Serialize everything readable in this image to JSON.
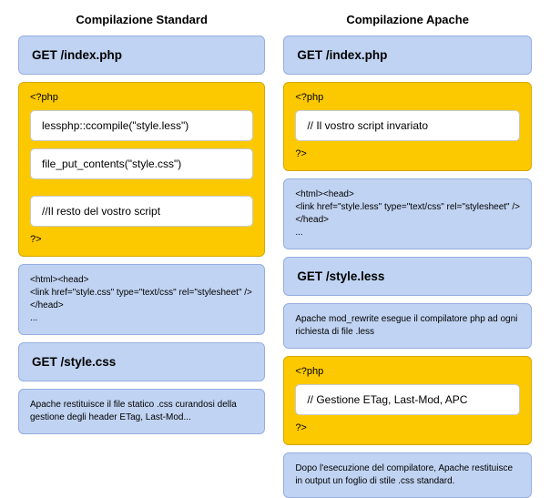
{
  "colors": {
    "blue_bg": "#c0d3f2",
    "blue_border": "#95aee0",
    "yellow_bg": "#fcc900",
    "yellow_border": "#d4a800",
    "white": "#ffffff",
    "inner_border": "#c9c9c9"
  },
  "left": {
    "title": "Compilazione Standard",
    "get1": "GET /index.php",
    "php_open": "<?php",
    "php_close": "?>",
    "php_lines": {
      "l1": "lessphp::ccompile(\"style.less\")",
      "l2": "file_put_contents(\"style.css\")",
      "l3": "//Il resto del vostro script"
    },
    "html_snippet": {
      "l1": "<html><head>",
      "l2": "<link href=\"style.css\" type=\"text/css\" rel=\"stylesheet\" />",
      "l3": "</head>",
      "l4": "..."
    },
    "get2": "GET /style.css",
    "note": "Apache restituisce il file statico .css curandosi della gestione degli header ETag, Last-Mod..."
  },
  "right": {
    "title": "Compilazione Apache",
    "get1": "GET /index.php",
    "php_open": "<?php",
    "php_close": "?>",
    "php1_lines": {
      "l1": "// Il vostro script invariato"
    },
    "html_snippet": {
      "l1": "<html><head>",
      "l2": "<link href=\"style.less\" type=\"text/css\" rel=\"stylesheet\" />",
      "l3": "</head>",
      "l4": "..."
    },
    "get2": "GET /style.less",
    "note1": "Apache mod_rewrite esegue il compilatore php ad ogni richiesta di file .less",
    "php2_lines": {
      "l1": "// Gestione ETag, Last-Mod, APC"
    },
    "note2": "Dopo l'esecuzione del compilatore, Apache restituisce in output un foglio di stile .css standard."
  }
}
